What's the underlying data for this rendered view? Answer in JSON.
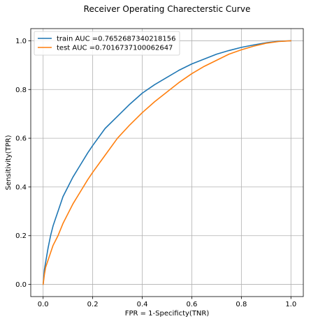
{
  "chart_data": {
    "type": "line",
    "title": "Receiver Operating Charecterstic Curve",
    "xlabel": "FPR = 1-Specificty(TNR)",
    "ylabel": "Sensitivity(TPR)",
    "xlim": [
      -0.05,
      1.05
    ],
    "ylim": [
      -0.05,
      1.05
    ],
    "xticks": [
      "0.0",
      "0.2",
      "0.4",
      "0.6",
      "0.8",
      "1.0"
    ],
    "yticks": [
      "0.0",
      "0.2",
      "0.4",
      "0.6",
      "0.8",
      "1.0"
    ],
    "grid": true,
    "legend_position": "top-left",
    "series": [
      {
        "name": "train AUC =0.7652687340218156",
        "color": "#1f77b4",
        "x": [
          0.0,
          0.005,
          0.01,
          0.02,
          0.03,
          0.04,
          0.05,
          0.06,
          0.08,
          0.1,
          0.12,
          0.15,
          0.18,
          0.2,
          0.25,
          0.3,
          0.35,
          0.4,
          0.45,
          0.5,
          0.55,
          0.6,
          0.65,
          0.7,
          0.75,
          0.8,
          0.85,
          0.9,
          0.95,
          1.0
        ],
        "y": [
          0.0,
          0.06,
          0.09,
          0.15,
          0.2,
          0.24,
          0.27,
          0.3,
          0.36,
          0.4,
          0.44,
          0.49,
          0.54,
          0.57,
          0.64,
          0.69,
          0.74,
          0.785,
          0.82,
          0.85,
          0.88,
          0.905,
          0.925,
          0.945,
          0.96,
          0.973,
          0.983,
          0.992,
          0.998,
          1.0
        ]
      },
      {
        "name": "test AUC =0.7016737100062647",
        "color": "#ff7f0e",
        "x": [
          0.0,
          0.005,
          0.01,
          0.02,
          0.03,
          0.04,
          0.05,
          0.06,
          0.08,
          0.1,
          0.12,
          0.15,
          0.18,
          0.2,
          0.25,
          0.3,
          0.35,
          0.4,
          0.45,
          0.5,
          0.55,
          0.6,
          0.65,
          0.7,
          0.75,
          0.8,
          0.85,
          0.9,
          0.95,
          1.0
        ],
        "y": [
          0.0,
          0.04,
          0.07,
          0.1,
          0.13,
          0.16,
          0.18,
          0.2,
          0.25,
          0.29,
          0.33,
          0.38,
          0.43,
          0.46,
          0.53,
          0.6,
          0.655,
          0.705,
          0.75,
          0.79,
          0.83,
          0.865,
          0.895,
          0.92,
          0.945,
          0.963,
          0.978,
          0.99,
          0.997,
          1.0
        ]
      }
    ]
  }
}
